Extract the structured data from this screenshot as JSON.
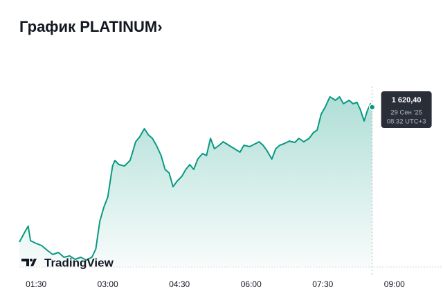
{
  "chart_data": {
    "type": "area",
    "title": "График PLATINUM›",
    "brand": "TradingView",
    "color": "#089981",
    "x": [
      "01:09",
      "01:16",
      "01:20",
      "01:23",
      "01:30",
      "01:37",
      "01:44",
      "01:51",
      "01:58",
      "02:05",
      "02:12",
      "02:19",
      "02:26",
      "02:33",
      "02:40",
      "02:45",
      "02:50",
      "02:55",
      "03:00",
      "03:06",
      "03:09",
      "03:14",
      "03:21",
      "03:28",
      "03:35",
      "03:40",
      "03:46",
      "03:51",
      "03:56",
      "04:01",
      "04:07",
      "04:12",
      "04:17",
      "04:22",
      "04:27",
      "04:33",
      "04:38",
      "04:43",
      "04:48",
      "04:53",
      "04:59",
      "05:04",
      "05:09",
      "05:14",
      "05:20",
      "05:25",
      "05:32",
      "05:39",
      "05:46",
      "05:51",
      "05:58",
      "06:05",
      "06:10",
      "06:15",
      "06:20",
      "06:26",
      "06:31",
      "06:36",
      "06:41",
      "06:48",
      "06:55",
      "07:00",
      "07:06",
      "07:13",
      "07:18",
      "07:23",
      "07:28",
      "07:33",
      "07:39",
      "07:46",
      "07:51",
      "07:56",
      "08:03",
      "08:08",
      "08:13",
      "08:17",
      "08:22",
      "08:26",
      "08:30",
      "08:32"
    ],
    "values": [
      1581.4,
      1584.4,
      1586.0,
      1581.8,
      1581.0,
      1580.4,
      1579.0,
      1577.8,
      1578.4,
      1577.0,
      1577.4,
      1576.4,
      1577.0,
      1576.2,
      1577.0,
      1579.4,
      1587.4,
      1591.4,
      1594.4,
      1603.4,
      1605.0,
      1603.8,
      1603.4,
      1605.0,
      1610.4,
      1611.8,
      1614.2,
      1612.4,
      1611.4,
      1609.4,
      1606.4,
      1602.4,
      1601.4,
      1597.4,
      1599.0,
      1600.4,
      1602.4,
      1603.8,
      1602.4,
      1605.4,
      1607.0,
      1606.4,
      1611.4,
      1608.4,
      1609.4,
      1610.4,
      1609.4,
      1608.4,
      1607.4,
      1609.4,
      1609.0,
      1609.8,
      1610.4,
      1609.4,
      1607.8,
      1605.4,
      1608.4,
      1609.4,
      1609.8,
      1610.6,
      1610.2,
      1611.4,
      1610.4,
      1611.4,
      1613.0,
      1613.8,
      1618.4,
      1620.4,
      1623.4,
      1622.4,
      1623.4,
      1621.4,
      1622.4,
      1621.4,
      1621.8,
      1619.8,
      1616.4,
      1619.4,
      1621.4,
      1620.4
    ],
    "xlim": [
      "01:09",
      "10:01"
    ],
    "xticks": [
      "01:30",
      "03:00",
      "04:30",
      "06:00",
      "07:30",
      "09:00"
    ],
    "ylim": [
      1574.4,
      1633.4
    ],
    "tooltip": {
      "label": "1 620,40",
      "date": "29 Сен '25",
      "time": "08:32 UTC+3"
    }
  }
}
